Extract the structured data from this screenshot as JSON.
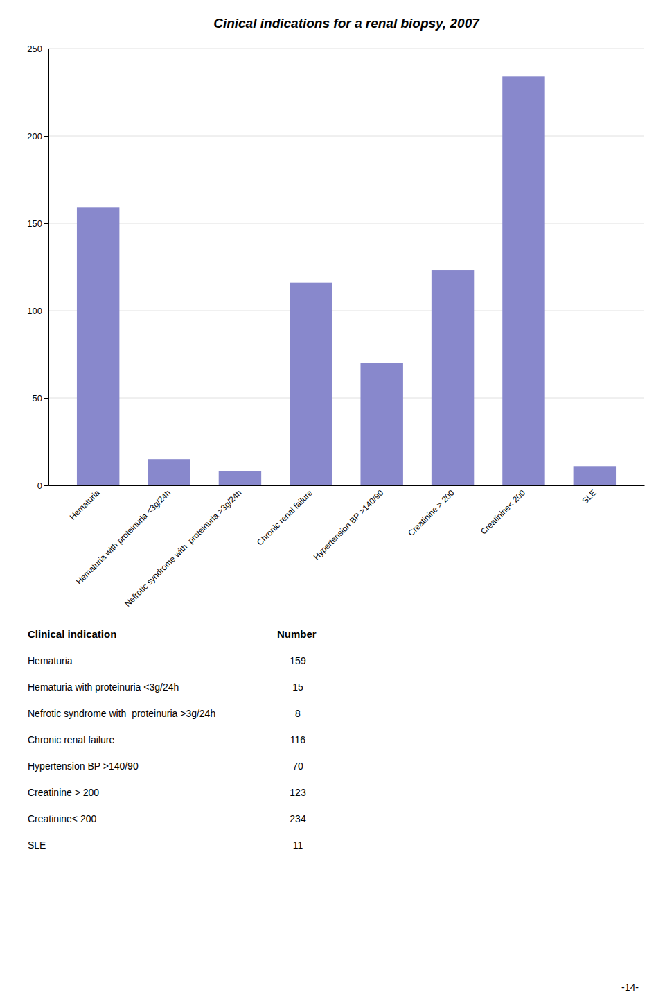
{
  "chart_data": {
    "type": "bar",
    "title": "Cinical indications for a renal biopsy, 2007",
    "categories": [
      "Hematuria",
      "Hematuria with proteinuria <3g/24h",
      "Nefrotic syndrome with  proteinuria >3g/24h",
      "Chronic renal failure",
      "Hypertension BP >140/90",
      "Creatinine > 200",
      "Creatinine< 200",
      "SLE"
    ],
    "values": [
      159,
      15,
      8,
      116,
      70,
      123,
      234,
      11
    ],
    "color": "#8888cc",
    "ylim": [
      0,
      250
    ],
    "yticks": [
      0,
      50,
      100,
      150,
      200,
      250
    ],
    "grid": true,
    "table": {
      "columns": [
        "Clinical indication",
        "Number"
      ],
      "rows": [
        [
          "Hematuria",
          "159"
        ],
        [
          "Hematuria with proteinuria <3g/24h",
          "15"
        ],
        [
          "Nefrotic syndrome with  proteinuria >3g/24h",
          "8"
        ],
        [
          "Chronic renal failure",
          "116"
        ],
        [
          "Hypertension BP >140/90",
          "70"
        ],
        [
          "Creatinine > 200",
          "123"
        ],
        [
          "Creatinine< 200",
          "234"
        ],
        [
          "SLE",
          "11"
        ]
      ]
    },
    "annotations": [
      "-14-"
    ]
  }
}
